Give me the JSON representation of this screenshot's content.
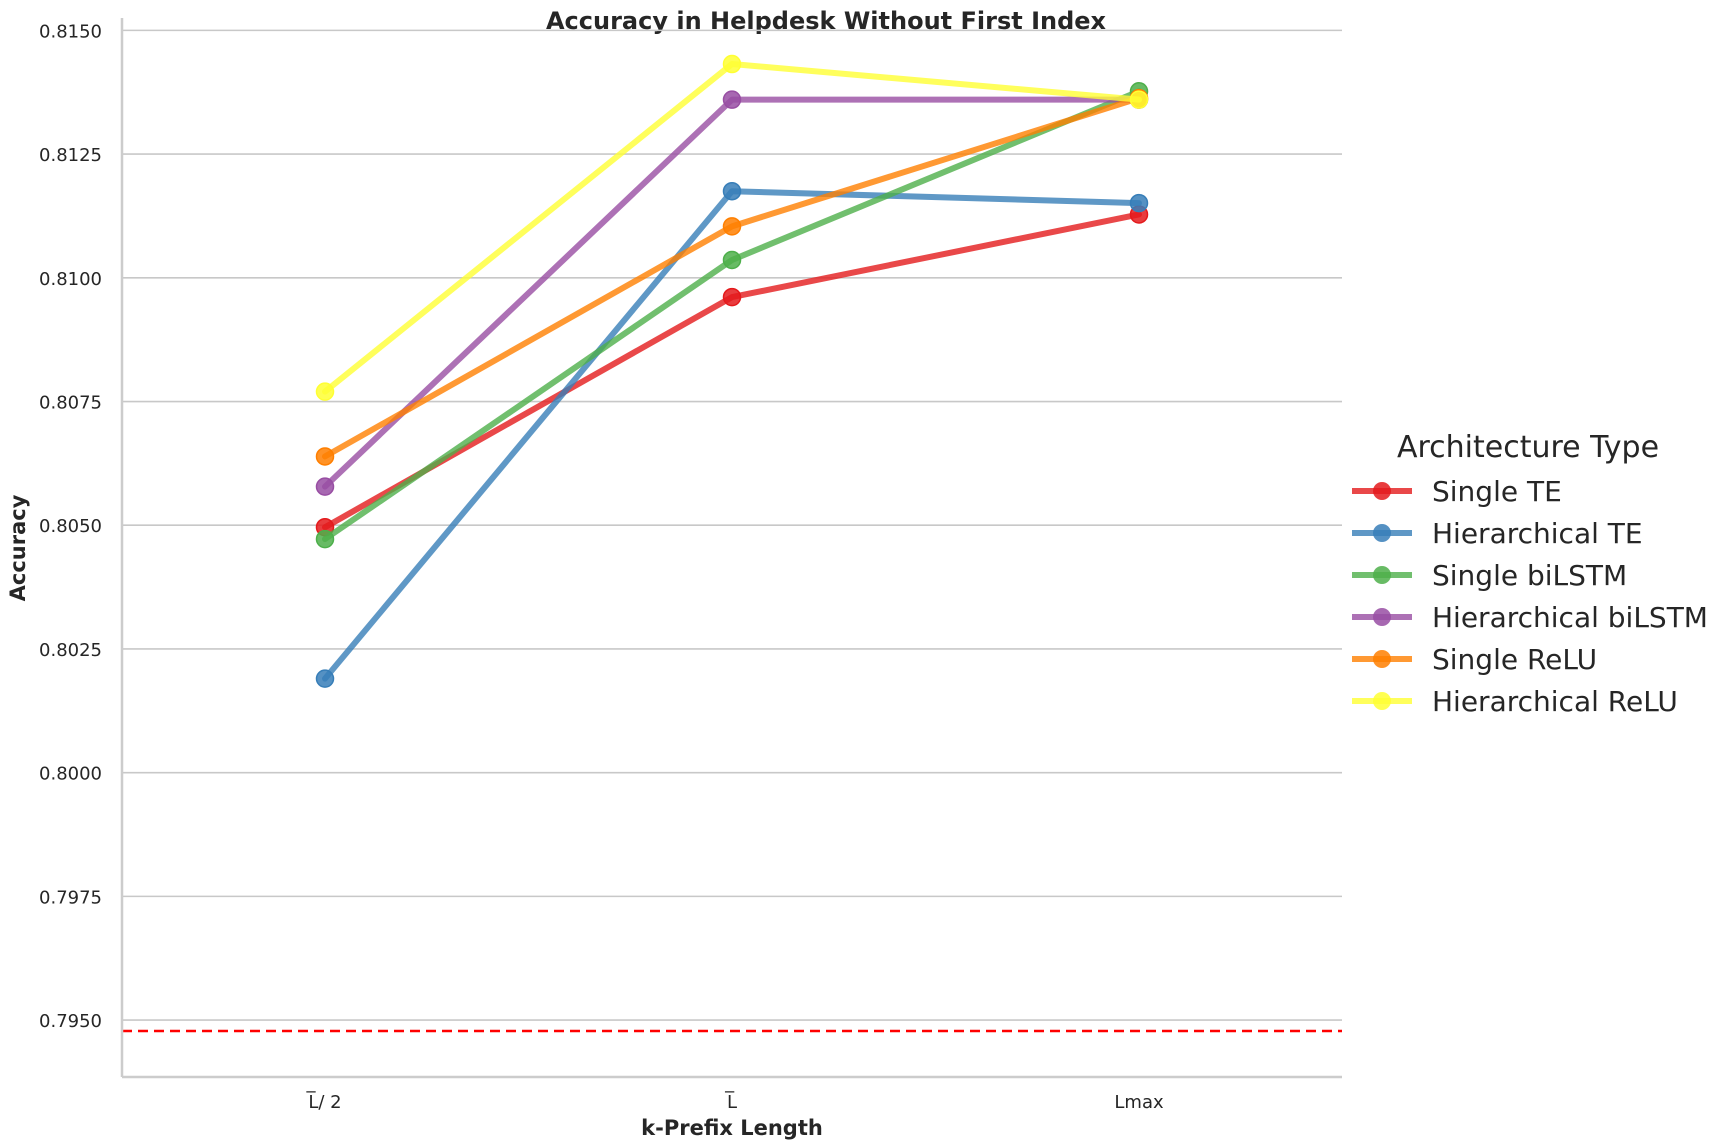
{
  "chart_data": {
    "type": "line",
    "title": "Accuracy in Helpdesk Without First Index",
    "xlabel": "k-Prefix Length",
    "ylabel": "Accuracy",
    "categories": [
      "L̅/ 2",
      "L̅",
      "Lmax"
    ],
    "ylim": [
      0.79385,
      0.81525
    ],
    "yticks": [
      0.795,
      0.7975,
      0.8,
      0.8025,
      0.805,
      0.8075,
      0.81,
      0.8125,
      0.815
    ],
    "ytick_labels": [
      "0.7950",
      "0.7975",
      "0.8000",
      "0.8025",
      "0.8050",
      "0.8075",
      "0.8100",
      "0.8125",
      "0.8150"
    ],
    "grid": "horizontal",
    "baseline": {
      "value": 0.79478,
      "color": "#ff0000",
      "style": "dashed"
    },
    "legend": {
      "title": "Architecture Type",
      "placement": "right"
    },
    "series": [
      {
        "name": "Single TE",
        "color": "#e41a1c",
        "values": [
          0.80496,
          0.80961,
          0.81128
        ]
      },
      {
        "name": "Hierarchical TE",
        "color": "#377eb8",
        "values": [
          0.8019,
          0.81175,
          0.81151
        ]
      },
      {
        "name": "Single biLSTM",
        "color": "#4daf4a",
        "values": [
          0.80472,
          0.81036,
          0.81377
        ]
      },
      {
        "name": "Hierarchical biLSTM",
        "color": "#984ea3",
        "values": [
          0.80578,
          0.8136,
          0.8136
        ]
      },
      {
        "name": "Single ReLU",
        "color": "#ff7f00",
        "values": [
          0.80639,
          0.81104,
          0.81363
        ]
      },
      {
        "name": "Hierarchical ReLU",
        "color": "#ffff33",
        "values": [
          0.8077,
          0.81432,
          0.8136
        ]
      }
    ]
  }
}
